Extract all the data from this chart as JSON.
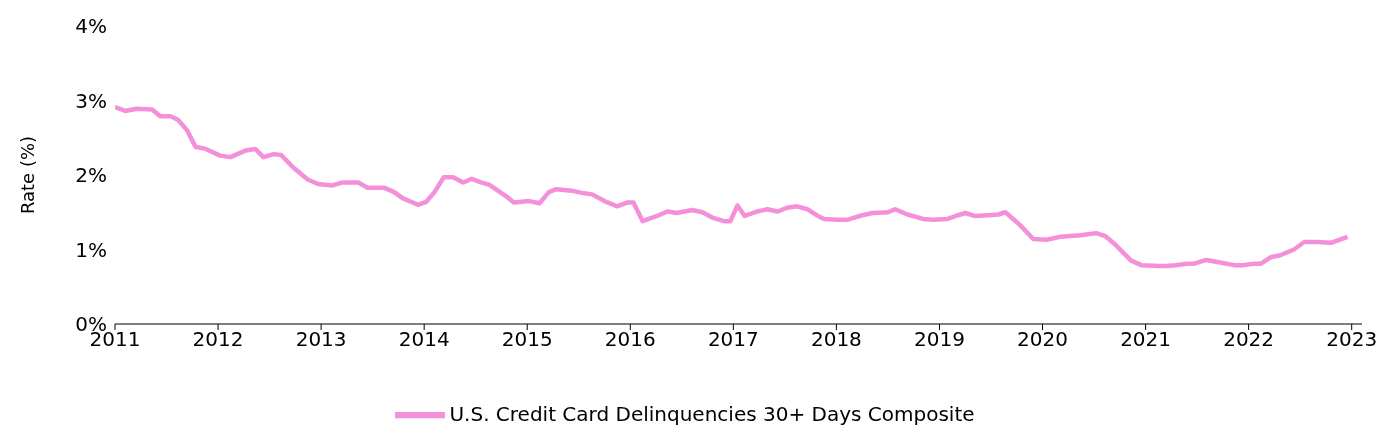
{
  "chart_data": {
    "type": "line",
    "ylabel": "Rate (%)",
    "legend": "bottom",
    "grid": false,
    "marker": "none",
    "line_style": "solid",
    "xlim": [
      2011,
      2023.1
    ],
    "xticks": [
      2011,
      2012,
      2013,
      2014,
      2015,
      2016,
      2017,
      2018,
      2019,
      2020,
      2021,
      2022,
      2023
    ],
    "ylim": [
      0,
      4
    ],
    "yticks": [
      {
        "value": 0,
        "label": "0%"
      },
      {
        "value": 1,
        "label": "1%"
      },
      {
        "value": 2,
        "label": "2%"
      },
      {
        "value": 3,
        "label": "3%"
      },
      {
        "value": 4,
        "label": "4%"
      }
    ],
    "x": [
      2011.0,
      2011.1,
      2011.21,
      2011.36,
      2011.44,
      2011.54,
      2011.61,
      2011.7,
      2011.78,
      2011.88,
      2012.02,
      2012.12,
      2012.27,
      2012.36,
      2012.44,
      2012.54,
      2012.61,
      2012.73,
      2012.87,
      2012.97,
      2013.11,
      2013.21,
      2013.36,
      2013.45,
      2013.61,
      2013.71,
      2013.79,
      2013.94,
      2014.02,
      2014.1,
      2014.19,
      2014.28,
      2014.38,
      2014.46,
      2014.55,
      2014.63,
      2014.8,
      2014.87,
      2015.02,
      2015.12,
      2015.21,
      2015.28,
      2015.43,
      2015.53,
      2015.63,
      2015.75,
      2015.87,
      2015.97,
      2016.03,
      2016.12,
      2016.26,
      2016.36,
      2016.45,
      2016.6,
      2016.7,
      2016.81,
      2016.91,
      2016.97,
      2017.04,
      2017.11,
      2017.23,
      2017.33,
      2017.43,
      2017.52,
      2017.62,
      2017.72,
      2017.82,
      2017.88,
      2018.01,
      2018.11,
      2018.25,
      2018.35,
      2018.5,
      2018.57,
      2018.69,
      2018.84,
      2018.94,
      2019.08,
      2019.18,
      2019.25,
      2019.34,
      2019.47,
      2019.57,
      2019.64,
      2019.78,
      2019.91,
      2020.04,
      2020.17,
      2020.27,
      2020.37,
      2020.52,
      2020.61,
      2020.71,
      2020.86,
      2020.96,
      2021.13,
      2021.2,
      2021.29,
      2021.4,
      2021.47,
      2021.59,
      2021.71,
      2021.86,
      2021.95,
      2022.05,
      2022.12,
      2022.22,
      2022.3,
      2022.44,
      2022.54,
      2022.66,
      2022.8,
      2022.96
    ],
    "series": [
      {
        "name": "U.S. Credit Card Delinquencies 30+ Days Composite",
        "color": "#f48fd9",
        "values": [
          2.91,
          2.86,
          2.89,
          2.88,
          2.79,
          2.79,
          2.74,
          2.6,
          2.38,
          2.35,
          2.26,
          2.24,
          2.33,
          2.35,
          2.24,
          2.28,
          2.27,
          2.1,
          1.94,
          1.88,
          1.86,
          1.9,
          1.9,
          1.83,
          1.83,
          1.77,
          1.69,
          1.6,
          1.64,
          1.77,
          1.97,
          1.97,
          1.9,
          1.95,
          1.9,
          1.87,
          1.71,
          1.63,
          1.65,
          1.62,
          1.77,
          1.81,
          1.79,
          1.76,
          1.74,
          1.65,
          1.58,
          1.63,
          1.63,
          1.38,
          1.45,
          1.51,
          1.49,
          1.53,
          1.5,
          1.42,
          1.38,
          1.38,
          1.59,
          1.45,
          1.51,
          1.54,
          1.51,
          1.56,
          1.58,
          1.54,
          1.45,
          1.41,
          1.4,
          1.4,
          1.46,
          1.49,
          1.5,
          1.54,
          1.47,
          1.41,
          1.4,
          1.41,
          1.46,
          1.49,
          1.45,
          1.46,
          1.47,
          1.5,
          1.33,
          1.14,
          1.13,
          1.17,
          1.18,
          1.19,
          1.22,
          1.18,
          1.06,
          0.85,
          0.79,
          0.78,
          0.78,
          0.79,
          0.81,
          0.81,
          0.86,
          0.83,
          0.79,
          0.79,
          0.81,
          0.81,
          0.9,
          0.92,
          1.0,
          1.1,
          1.1,
          1.09,
          1.17
        ]
      }
    ]
  }
}
